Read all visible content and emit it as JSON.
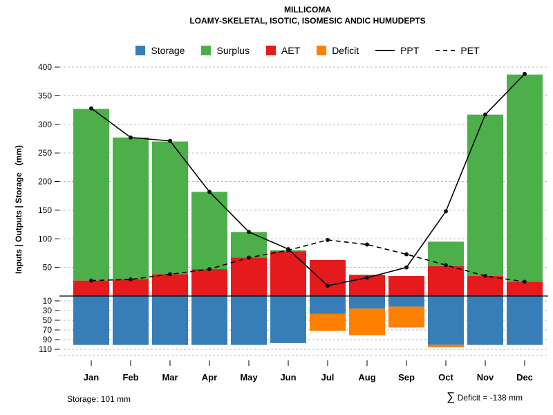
{
  "chart_data": {
    "type": "bar",
    "title": "MILLICOMA",
    "subtitle": "LOAMY-SKELETAL, ISOTIC, ISOMESIC ANDIC HUMUDEPTS",
    "ylabel": "Inputs | Outputs | Storage   (mm)",
    "categories": [
      "Jan",
      "Feb",
      "Mar",
      "Apr",
      "May",
      "Jun",
      "Jul",
      "Aug",
      "Sep",
      "Oct",
      "Nov",
      "Dec"
    ],
    "upper_axis_ticks": [
      50,
      100,
      150,
      200,
      250,
      300,
      350,
      400
    ],
    "lower_axis_ticks": [
      10,
      30,
      50,
      70,
      90,
      110
    ],
    "ylim_upper": [
      0,
      400
    ],
    "ylim_lower_depth": [
      0,
      122
    ],
    "grid": true,
    "legend_position": "top",
    "series": [
      {
        "name": "Storage",
        "type": "bar-lower",
        "color": "#377EB8",
        "values": [
          101,
          101,
          101,
          101,
          101,
          97,
          37,
          26,
          22,
          101,
          101,
          101
        ]
      },
      {
        "name": "Surplus",
        "type": "bar-upper",
        "color": "#4DAF4A",
        "values": [
          300,
          248,
          232,
          135,
          45,
          2,
          0,
          0,
          0,
          43,
          282,
          362
        ]
      },
      {
        "name": "AET",
        "type": "bar-upper",
        "color": "#E41A1C",
        "values": [
          27,
          29,
          38,
          47,
          67,
          78,
          63,
          37,
          35,
          52,
          35,
          25
        ]
      },
      {
        "name": "Deficit",
        "type": "bar-lower",
        "color": "#FF7F00",
        "values": [
          0,
          0,
          0,
          0,
          0,
          0,
          -35,
          -55,
          -43,
          -5,
          0,
          0
        ]
      },
      {
        "name": "PPT",
        "type": "line-solid",
        "color": "#000000",
        "values": [
          328,
          277,
          271,
          182,
          112,
          82,
          18,
          32,
          50,
          148,
          317,
          388
        ]
      },
      {
        "name": "PET",
        "type": "line-dashed",
        "color": "#000000",
        "values": [
          27,
          29,
          38,
          47,
          67,
          80,
          98,
          90,
          73,
          54,
          35,
          25
        ]
      }
    ],
    "annotations": {
      "storage": "Storage: 101 mm",
      "sigma": "∑",
      "deficit": " Deficit = -138 mm"
    }
  }
}
